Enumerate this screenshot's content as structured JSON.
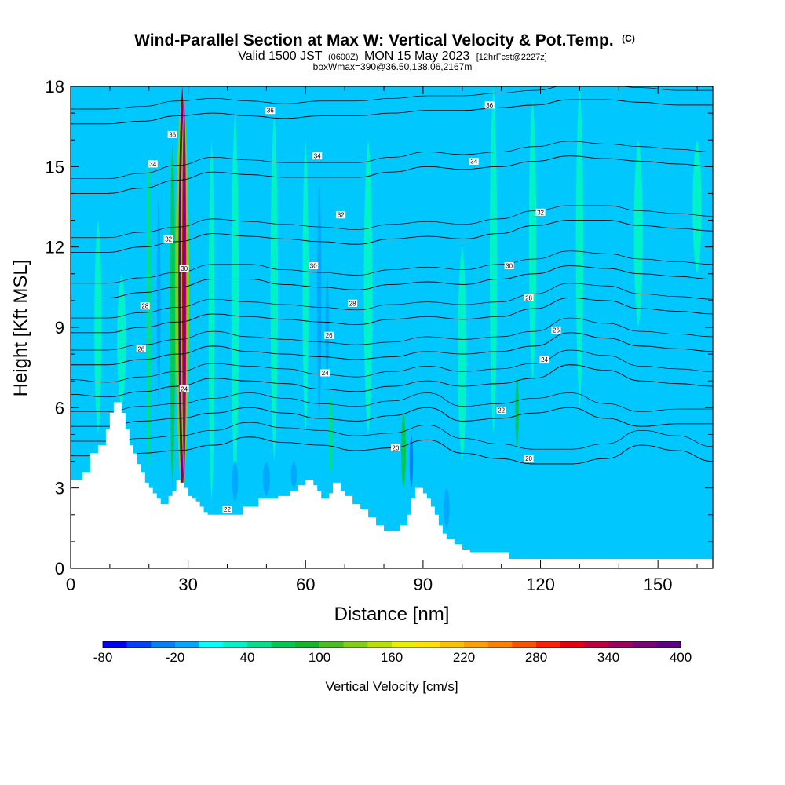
{
  "title": {
    "main": "Wind-Parallel Section at Max W: Vertical Velocity & Pot.Temp.",
    "main_copyright": "(C)",
    "sub_prefix": "Valid 1500 JST",
    "sub_utc": "(0600Z)",
    "sub_date": "MON 15 May 2023",
    "sub_fcst": "[12hrFcst@2227z]",
    "line3": "boxWmax=390@36.50,138.06,2167m"
  },
  "chart_data": {
    "type": "heatmap",
    "xlabel": "Distance [nm]",
    "ylabel": "Height [Kft MSL]",
    "xlim": [
      0,
      164
    ],
    "ylim": [
      0,
      18
    ],
    "x_ticks": [
      0,
      30,
      60,
      90,
      120,
      150
    ],
    "y_ticks": [
      0,
      3,
      6,
      9,
      12,
      15,
      18
    ],
    "background_fill": "#00c8ff",
    "terrain": {
      "x": [
        0,
        3,
        5,
        7,
        9,
        10,
        11,
        12,
        13,
        14,
        15,
        16,
        17,
        18,
        19,
        20,
        21,
        22,
        23,
        24,
        25,
        26,
        27,
        28,
        29,
        30,
        31,
        32,
        33,
        34,
        35,
        36,
        38,
        40,
        44,
        48,
        50,
        53,
        56,
        58,
        60,
        62,
        63,
        64,
        65,
        66,
        67,
        68,
        69,
        70,
        72,
        74,
        76,
        78,
        80,
        82,
        84,
        86,
        87,
        88,
        89,
        90,
        91,
        92,
        93,
        94,
        95,
        96,
        98,
        100,
        102,
        104,
        106,
        108,
        110,
        112,
        116,
        120,
        125,
        130,
        140,
        150,
        160,
        164
      ],
      "y": [
        3.3,
        3.6,
        4.3,
        4.6,
        5.2,
        5.8,
        6.2,
        6.2,
        5.8,
        5.2,
        4.6,
        4.3,
        3.9,
        3.6,
        3.2,
        3.0,
        2.8,
        2.6,
        2.4,
        2.4,
        2.7,
        2.9,
        3.3,
        3.2,
        3.0,
        2.7,
        2.6,
        2.5,
        2.3,
        2.1,
        2.0,
        2.0,
        2.0,
        2.0,
        2.3,
        2.6,
        2.6,
        2.7,
        2.9,
        3.1,
        3.3,
        3.1,
        2.9,
        2.6,
        2.6,
        2.8,
        3.2,
        3.2,
        2.9,
        2.7,
        2.4,
        2.2,
        1.9,
        1.6,
        1.4,
        1.4,
        1.6,
        2.0,
        2.6,
        3.0,
        3.0,
        2.8,
        2.6,
        2.3,
        2.0,
        1.6,
        1.3,
        1.1,
        0.9,
        0.7,
        0.6,
        0.6,
        0.6,
        0.6,
        0.6,
        0.35,
        0.35,
        0.35,
        0.35,
        0.35,
        0.35,
        0.35,
        0.35,
        0.35
      ]
    },
    "vertical_velocity_features": [
      {
        "x": 28.5,
        "y0": 2.6,
        "y1": 18,
        "w": 2.6,
        "value": 400
      },
      {
        "x": 29.0,
        "y0": 3.2,
        "y1": 17.6,
        "w": 1.4,
        "value": 320
      },
      {
        "x": 26.0,
        "y0": 3.0,
        "y1": 16.0,
        "w": 1.8,
        "value": 60
      },
      {
        "x": 20.0,
        "y0": 3.5,
        "y1": 15.5,
        "w": 1.6,
        "value": 40
      },
      {
        "x": 13.0,
        "y0": 6.0,
        "y1": 11.0,
        "w": 3.0,
        "value": 20
      },
      {
        "x": 7.0,
        "y0": 5.0,
        "y1": 13.0,
        "w": 2.5,
        "value": 20
      },
      {
        "x": 36.0,
        "y0": 2.5,
        "y1": 16.0,
        "w": 2.0,
        "value": 20
      },
      {
        "x": 42.0,
        "y0": 3.0,
        "y1": 17.0,
        "w": 2.5,
        "value": 20
      },
      {
        "x": 52.0,
        "y0": 4.0,
        "y1": 17.0,
        "w": 2.5,
        "value": 20
      },
      {
        "x": 60.0,
        "y0": 5.0,
        "y1": 16.0,
        "w": 2.0,
        "value": 20
      },
      {
        "x": 66.5,
        "y0": 3.5,
        "y1": 6.5,
        "w": 1.5,
        "value": 40
      },
      {
        "x": 76.0,
        "y0": 5.0,
        "y1": 16.0,
        "w": 3.0,
        "value": 20
      },
      {
        "x": 85.0,
        "y0": 3.0,
        "y1": 5.8,
        "w": 1.6,
        "value": 60
      },
      {
        "x": 100.0,
        "y0": 4.0,
        "y1": 12.0,
        "w": 3.0,
        "value": 20
      },
      {
        "x": 108.0,
        "y0": 5.0,
        "y1": 18.0,
        "w": 2.5,
        "value": 20
      },
      {
        "x": 114.0,
        "y0": 4.5,
        "y1": 7.2,
        "w": 1.2,
        "value": 60
      },
      {
        "x": 118.0,
        "y0": 7.0,
        "y1": 17.5,
        "w": 2.5,
        "value": 20
      },
      {
        "x": 130.0,
        "y0": 6.0,
        "y1": 18.0,
        "w": 2.5,
        "value": 20
      },
      {
        "x": 145.0,
        "y0": 9.0,
        "y1": 16.0,
        "w": 3.0,
        "value": 20
      },
      {
        "x": 160.0,
        "y0": 11.0,
        "y1": 16.0,
        "w": 3.0,
        "value": 20
      },
      {
        "x": 63.5,
        "y0": 5.5,
        "y1": 14.5,
        "w": 1.4,
        "value": -20
      },
      {
        "x": 50.0,
        "y0": 2.7,
        "y1": 4.0,
        "w": 2.5,
        "value": -20
      },
      {
        "x": 57.0,
        "y0": 3.0,
        "y1": 4.0,
        "w": 2.0,
        "value": -20
      },
      {
        "x": 65.5,
        "y0": 7.0,
        "y1": 11.0,
        "w": 1.0,
        "value": -20
      },
      {
        "x": 22.5,
        "y0": 6.0,
        "y1": 14.0,
        "w": 1.0,
        "value": -20
      },
      {
        "x": 87.0,
        "y0": 3.0,
        "y1": 5.0,
        "w": 1.0,
        "value": -40
      },
      {
        "x": 96.0,
        "y0": 1.5,
        "y1": 3.0,
        "w": 2.0,
        "value": -20
      },
      {
        "x": 42.0,
        "y0": 2.5,
        "y1": 4.0,
        "w": 2.0,
        "value": -20
      }
    ],
    "theta_contours": [
      {
        "label": "20",
        "y": [
          4.2,
          4.2,
          4.3,
          4.4,
          4.6,
          4.9,
          4.7,
          4.6,
          4.4,
          4.5,
          4.8,
          4.3,
          4.1,
          3.9,
          3.9,
          4.1,
          4.6,
          4.4,
          4.0
        ],
        "label_at": [
          [
            83,
            4.5
          ],
          [
            117,
            4.1
          ]
        ]
      },
      {
        "label": "22",
        "y": [
          5.3,
          5.3,
          5.5,
          5.6,
          5.8,
          6.0,
          5.8,
          5.6,
          5.5,
          5.7,
          6.0,
          5.5,
          5.6,
          5.8,
          6.0,
          5.6,
          5.3,
          5.4,
          5.4
        ],
        "label_at": [
          [
            40,
            2.2
          ],
          [
            110,
            5.9
          ]
        ]
      },
      {
        "label": "24",
        "y": [
          6.5,
          6.4,
          6.6,
          6.8,
          7.1,
          7.0,
          6.9,
          6.7,
          6.6,
          6.8,
          7.0,
          6.8,
          6.9,
          7.1,
          7.6,
          7.4,
          7.0,
          6.9,
          6.8
        ],
        "label_at": [
          [
            29,
            6.7
          ],
          [
            65,
            7.3
          ],
          [
            121,
            7.8
          ]
        ]
      },
      {
        "label": "26",
        "y": [
          7.6,
          7.6,
          7.8,
          8.0,
          8.3,
          8.1,
          8.0,
          7.9,
          7.8,
          7.9,
          8.1,
          8.0,
          8.1,
          8.3,
          8.8,
          8.6,
          8.3,
          8.2,
          8.1
        ],
        "label_at": [
          [
            18,
            8.2
          ],
          [
            66,
            8.7
          ],
          [
            124,
            8.9
          ]
        ]
      },
      {
        "label": "28",
        "y": [
          8.8,
          8.8,
          9.0,
          9.2,
          9.5,
          9.4,
          9.3,
          9.2,
          9.1,
          9.3,
          9.4,
          9.3,
          9.4,
          9.7,
          10.1,
          10.0,
          9.7,
          9.6,
          9.5
        ],
        "label_at": [
          [
            19,
            9.8
          ],
          [
            72,
            9.9
          ],
          [
            117,
            10.1
          ]
        ]
      },
      {
        "label": "30",
        "y": [
          10.1,
          10.1,
          10.3,
          10.5,
          10.8,
          10.8,
          10.6,
          10.5,
          10.4,
          10.6,
          10.7,
          10.6,
          10.8,
          11.0,
          11.3,
          11.2,
          11.0,
          10.9,
          10.8
        ],
        "label_at": [
          [
            29,
            11.2
          ],
          [
            62,
            11.3
          ],
          [
            112,
            11.3
          ]
        ]
      },
      {
        "label": "32",
        "y": [
          11.8,
          11.8,
          12.0,
          12.2,
          12.5,
          12.4,
          12.3,
          12.2,
          12.1,
          12.3,
          12.4,
          12.3,
          12.5,
          12.8,
          13.0,
          13.0,
          12.8,
          12.7,
          12.6
        ],
        "label_at": [
          [
            25,
            12.3
          ],
          [
            69,
            13.2
          ],
          [
            120,
            13.3
          ]
        ]
      },
      {
        "label": "34",
        "y": [
          14.0,
          14.0,
          14.2,
          14.5,
          14.8,
          14.7,
          14.6,
          14.6,
          14.6,
          14.8,
          15.0,
          14.9,
          15.0,
          15.2,
          15.4,
          15.3,
          15.2,
          15.1,
          15.0
        ],
        "label_at": [
          [
            21,
            15.1
          ],
          [
            63,
            15.4
          ],
          [
            103,
            15.2
          ]
        ]
      },
      {
        "label": "36",
        "y": [
          16.6,
          16.6,
          16.7,
          16.9,
          17.0,
          16.9,
          16.8,
          16.9,
          16.9,
          17.0,
          17.1,
          17.1,
          17.2,
          17.3,
          17.5,
          17.5,
          17.4,
          17.3,
          17.3
        ],
        "label_at": [
          [
            51,
            17.1
          ],
          [
            26,
            16.2
          ],
          [
            107,
            17.3
          ]
        ]
      }
    ],
    "colorbar": {
      "title": "Vertical Velocity [cm/s]",
      "tick_labels": [
        "-80",
        "-20",
        "40",
        "100",
        "160",
        "220",
        "280",
        "340",
        "400"
      ],
      "colors": [
        "#0000ff",
        "#0040ff",
        "#0080ff",
        "#00a8ff",
        "#00ffff",
        "#00f2c8",
        "#00e08c",
        "#00c850",
        "#10b828",
        "#48c020",
        "#80d010",
        "#b8e000",
        "#e8f000",
        "#ffe000",
        "#ffc000",
        "#ffa000",
        "#ff8000",
        "#ff5000",
        "#ff2000",
        "#e8000a",
        "#c00040",
        "#a00060",
        "#800078",
        "#600088"
      ]
    }
  }
}
